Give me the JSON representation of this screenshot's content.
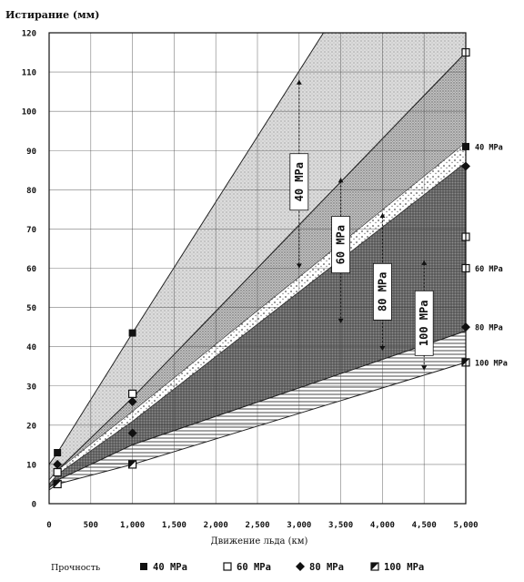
{
  "chart_data": {
    "type": "area",
    "ylabel": "Истирание (мм)",
    "xlabel": "Движение льда (км)",
    "xlim": [
      0,
      5000
    ],
    "ylim": [
      0,
      120
    ],
    "x_ticks": [
      0,
      500,
      1000,
      1500,
      2000,
      2500,
      3000,
      3500,
      4000,
      4500,
      5000
    ],
    "x_tick_labels": [
      "0",
      "500",
      "1,000",
      "1,500",
      "2,000",
      "2,500",
      "3,000",
      "3,500",
      "4,000",
      "4,500",
      "5,000"
    ],
    "y_ticks": [
      0,
      10,
      20,
      30,
      40,
      50,
      60,
      70,
      80,
      90,
      100,
      110,
      120
    ],
    "y_tick_labels": [
      "0",
      "10",
      "20",
      "30",
      "40",
      "50",
      "60",
      "70",
      "80",
      "90",
      "100",
      "110",
      "120"
    ],
    "grid": true,
    "legend": {
      "title": "Прочность",
      "placement": "bottom",
      "entries": [
        {
          "label": "40 MPa",
          "marker": "filled-square"
        },
        {
          "label": "60 MPa",
          "marker": "open-square"
        },
        {
          "label": "80 MPa",
          "marker": "diamond"
        },
        {
          "label": "100 MPa",
          "marker": "half-square"
        }
      ]
    },
    "series": [
      {
        "name": "40 MPa",
        "band_label": "40 MPa",
        "end_label": "40 MPa",
        "upper": {
          "x": [
            0,
            100,
            1000,
            5000
          ],
          "y": [
            10,
            13,
            43.5,
            177
          ]
        },
        "lower": {
          "x": [
            0,
            100,
            1000,
            5000
          ],
          "y": [
            6,
            8.5,
            27,
            115
          ]
        },
        "markers": [
          {
            "x": 100,
            "y": 13
          },
          {
            "x": 1000,
            "y": 43.5
          },
          {
            "x": 5000,
            "y": 91
          }
        ],
        "fill": "#dcdcdc",
        "pattern": "light-dots"
      },
      {
        "name": "60 MPa",
        "band_label": "60 MPa",
        "end_label": "60 MPa",
        "upper": {
          "x": [
            0,
            100,
            1000,
            5000
          ],
          "y": [
            6,
            8.5,
            27,
            115
          ]
        },
        "lower": {
          "x": [
            0,
            100,
            1000,
            5000
          ],
          "y": [
            5,
            7.5,
            21,
            87
          ]
        },
        "markers": [
          {
            "x": 100,
            "y": 8
          },
          {
            "x": 1000,
            "y": 28
          },
          {
            "x": 5000,
            "y": 115
          },
          {
            "x": 5000,
            "y": 68
          },
          {
            "x": 5000,
            "y": 60
          }
        ],
        "fill": "#bdbdbd",
        "pattern": "medium-dots"
      },
      {
        "name": "80 MPa",
        "band_label": "80 MPa",
        "end_label": "80 MPa",
        "upper": {
          "x": [
            0,
            100,
            1000,
            5000
          ],
          "y": [
            5,
            7.5,
            21,
            87
          ]
        },
        "lower": {
          "x": [
            0,
            100,
            1000,
            5000
          ],
          "y": [
            4,
            6,
            15,
            44
          ]
        },
        "markers": [
          {
            "x": 100,
            "y": 10
          },
          {
            "x": 1000,
            "y": 26
          },
          {
            "x": 1000,
            "y": 18
          },
          {
            "x": 5000,
            "y": 86
          },
          {
            "x": 5000,
            "y": 45
          }
        ],
        "fill": "#7d7d7d",
        "pattern": "dark-dots"
      },
      {
        "name": "100 MPa",
        "band_label": "100 MPa",
        "end_label": "100 MPa",
        "upper": {
          "x": [
            0,
            100,
            1000,
            5000
          ],
          "y": [
            4,
            6,
            15,
            44
          ]
        },
        "lower": {
          "x": [
            0,
            100,
            1000,
            5000
          ],
          "y": [
            3.5,
            5,
            10,
            36
          ]
        },
        "markers": [
          {
            "x": 100,
            "y": 5
          },
          {
            "x": 1000,
            "y": 10
          },
          {
            "x": 5000,
            "y": 36
          }
        ],
        "fill": "#ffffff",
        "pattern": "horizontal-hatch"
      }
    ]
  }
}
